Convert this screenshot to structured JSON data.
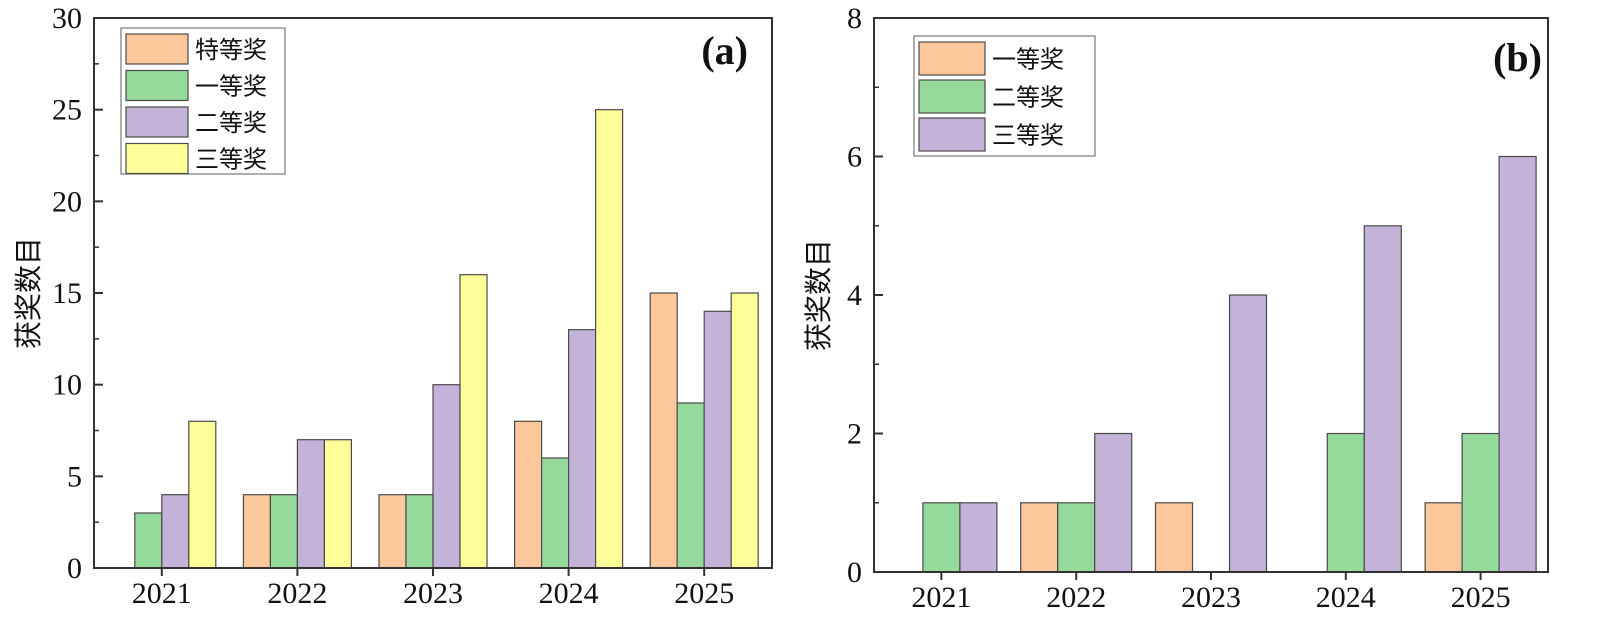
{
  "colors": {
    "s0": "#FCC89B",
    "s1": "#95D99B",
    "s2": "#C3B3D8",
    "s3": "#FFFF99",
    "axis": "#333333",
    "bar_stroke": "#4a4a4a"
  },
  "chart_data": [
    {
      "type": "bar",
      "panel_label": "(a)",
      "title": "",
      "xlabel": "",
      "ylabel": "获奖数目",
      "categories": [
        "2021",
        "2022",
        "2023",
        "2024",
        "2025"
      ],
      "ylim": [
        0,
        30
      ],
      "yticks": [
        0,
        5,
        10,
        15,
        20,
        25,
        30
      ],
      "ytick_labels": [
        "0",
        "5",
        "10",
        "15",
        "20",
        "25",
        "30"
      ],
      "legend_position": "top-left",
      "series": [
        {
          "name": "特等奖",
          "color_key": "s0",
          "values": [
            0,
            4,
            4,
            8,
            15
          ]
        },
        {
          "name": "一等奖",
          "color_key": "s1",
          "values": [
            3,
            4,
            4,
            6,
            9
          ]
        },
        {
          "name": "二等奖",
          "color_key": "s2",
          "values": [
            4,
            7,
            10,
            13,
            14
          ]
        },
        {
          "name": "三等奖",
          "color_key": "s3",
          "values": [
            8,
            7,
            16,
            25,
            15
          ]
        }
      ]
    },
    {
      "type": "bar",
      "panel_label": "(b)",
      "title": "",
      "xlabel": "",
      "ylabel": "获奖数目",
      "categories": [
        "2021",
        "2022",
        "2023",
        "2024",
        "2025"
      ],
      "ylim": [
        0,
        8
      ],
      "yticks": [
        0,
        2,
        4,
        6,
        8
      ],
      "ytick_labels": [
        "0",
        "2",
        "4",
        "6",
        "8"
      ],
      "legend_position": "top-left",
      "series": [
        {
          "name": "一等奖",
          "color_key": "s0",
          "values": [
            0,
            1,
            1,
            0,
            1
          ]
        },
        {
          "name": "二等奖",
          "color_key": "s1",
          "values": [
            1,
            1,
            0,
            2,
            2
          ]
        },
        {
          "name": "三等奖",
          "color_key": "s2",
          "values": [
            1,
            2,
            4,
            5,
            6
          ]
        }
      ]
    }
  ]
}
